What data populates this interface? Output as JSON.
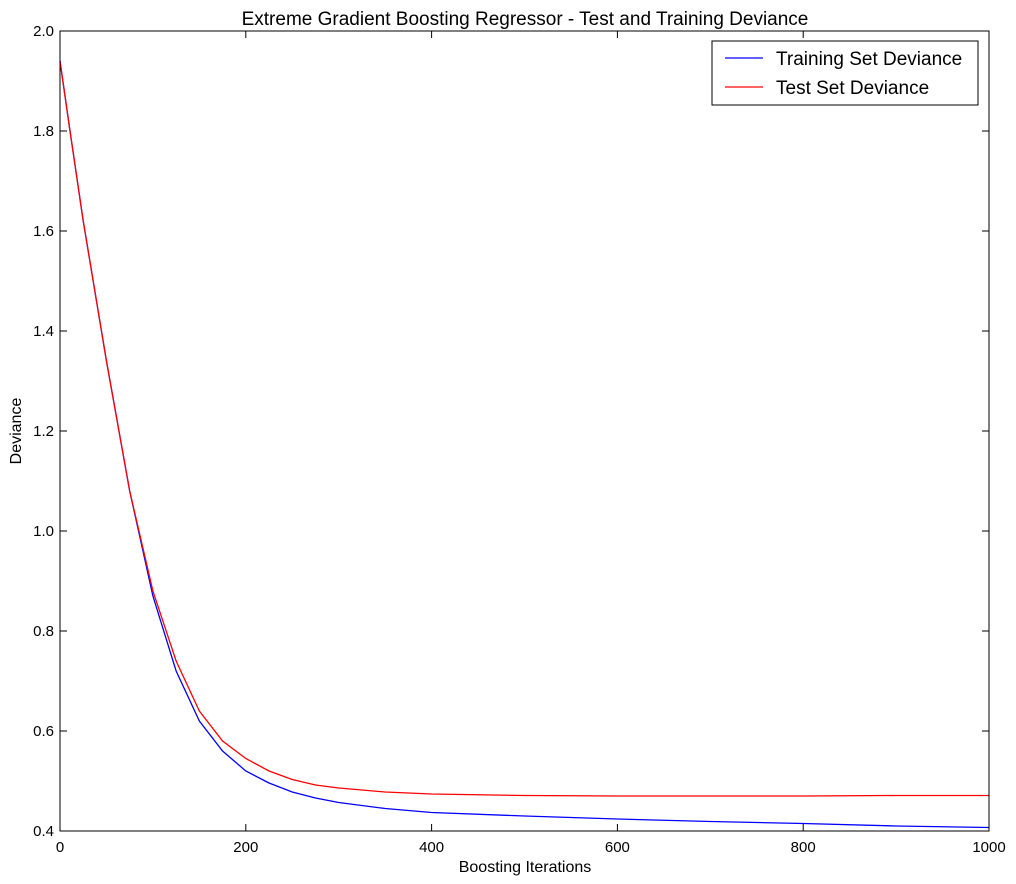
{
  "chart_data": {
    "type": "line",
    "title": "Extreme Gradient Boosting Regressor - Test and Training Deviance",
    "xlabel": "Boosting Iterations",
    "ylabel": "Deviance",
    "xlim": [
      0,
      1000
    ],
    "ylim": [
      0.4,
      2.0
    ],
    "x_ticks": [
      "0",
      "200",
      "400",
      "600",
      "800",
      "1000"
    ],
    "y_ticks": [
      "0.4",
      "0.6",
      "0.8",
      "1.0",
      "1.2",
      "1.4",
      "1.6",
      "1.8",
      "2.0"
    ],
    "grid": false,
    "legend_position": "top-right",
    "series": [
      {
        "name": "Training Set Deviance",
        "color": "#0000ff",
        "x": [
          0,
          10,
          25,
          50,
          75,
          100,
          125,
          150,
          175,
          200,
          225,
          250,
          275,
          300,
          350,
          400,
          500,
          600,
          700,
          800,
          900,
          1000
        ],
        "y": [
          1.94,
          1.81,
          1.62,
          1.34,
          1.08,
          0.87,
          0.72,
          0.62,
          0.56,
          0.52,
          0.496,
          0.478,
          0.466,
          0.457,
          0.445,
          0.437,
          0.43,
          0.424,
          0.419,
          0.415,
          0.41,
          0.407
        ]
      },
      {
        "name": "Test Set Deviance",
        "color": "#ff0000",
        "x": [
          0,
          10,
          25,
          50,
          75,
          100,
          125,
          150,
          175,
          200,
          225,
          250,
          275,
          300,
          350,
          400,
          500,
          600,
          700,
          800,
          900,
          1000
        ],
        "y": [
          1.94,
          1.81,
          1.62,
          1.34,
          1.08,
          0.88,
          0.74,
          0.64,
          0.58,
          0.545,
          0.52,
          0.503,
          0.492,
          0.486,
          0.478,
          0.474,
          0.471,
          0.47,
          0.47,
          0.47,
          0.471,
          0.471
        ]
      }
    ]
  }
}
